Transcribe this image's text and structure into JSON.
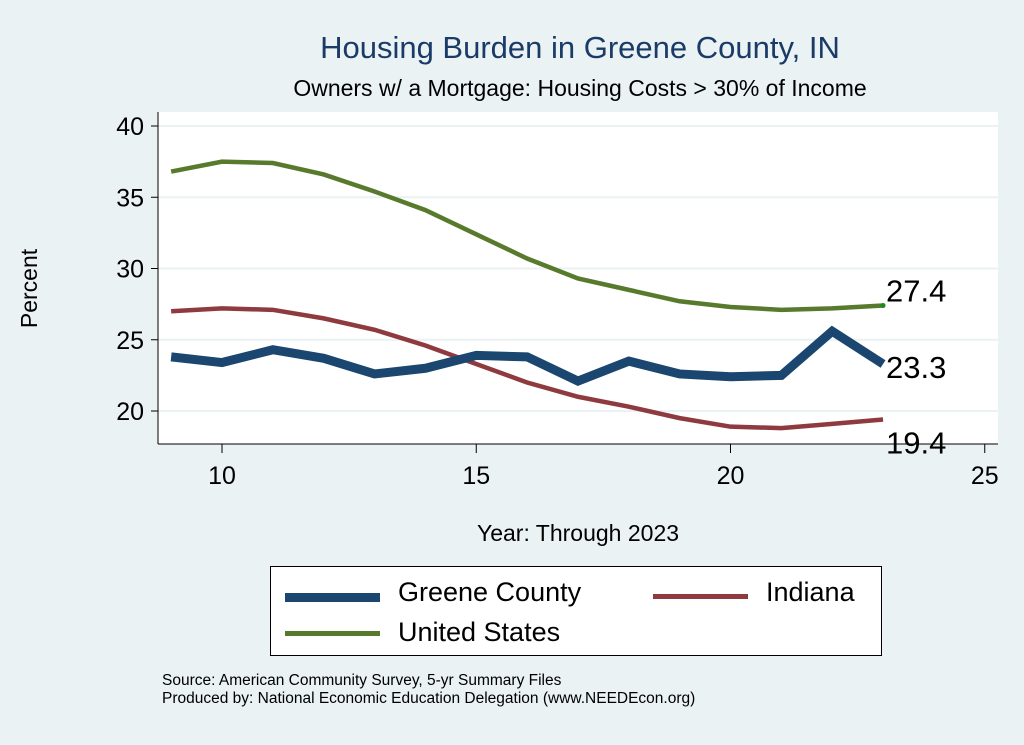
{
  "chart_data": {
    "type": "line",
    "title": "Housing Burden in Greene County, IN",
    "subtitle": "Owners w/ a Mortgage: Housing Costs > 30% of Income",
    "xlabel": "Year: Through 2023",
    "ylabel": "Percent",
    "xlim": [
      8.7,
      25.4
    ],
    "ylim": [
      17.6,
      40.6
    ],
    "xticks": [
      10,
      15,
      20,
      25
    ],
    "yticks": [
      20,
      25,
      30,
      35,
      40
    ],
    "grid": true,
    "legend_position": "bottom",
    "x": [
      9,
      10,
      11,
      12,
      13,
      14,
      15,
      16,
      17,
      18,
      19,
      20,
      21,
      22,
      23
    ],
    "series": [
      {
        "name": "Greene County",
        "color": "#1B466F",
        "width": 9,
        "values": [
          23.8,
          23.4,
          24.3,
          23.7,
          22.6,
          23.0,
          23.9,
          23.8,
          22.1,
          23.5,
          22.6,
          22.4,
          22.5,
          25.6,
          23.3
        ],
        "end_label": "23.3"
      },
      {
        "name": "Indiana",
        "color": "#8E3A3F",
        "width": 4.5,
        "values": [
          27.0,
          27.2,
          27.1,
          26.5,
          25.7,
          24.6,
          23.3,
          22.0,
          21.0,
          20.3,
          19.5,
          18.9,
          18.8,
          19.1,
          19.4
        ],
        "end_label": "19.4"
      },
      {
        "name": "United States",
        "color": "#577A2C",
        "width": 4.5,
        "values": [
          36.8,
          37.5,
          37.4,
          36.6,
          35.4,
          34.1,
          32.4,
          30.7,
          29.3,
          28.5,
          27.7,
          27.3,
          27.1,
          27.2,
          27.4
        ],
        "end_label": "27.4"
      }
    ]
  },
  "source": {
    "line1": "Source: American Community Survey, 5-yr Summary Files",
    "line2": "Produced by: National Economic Education Delegation (www.NEEDEcon.org)"
  }
}
